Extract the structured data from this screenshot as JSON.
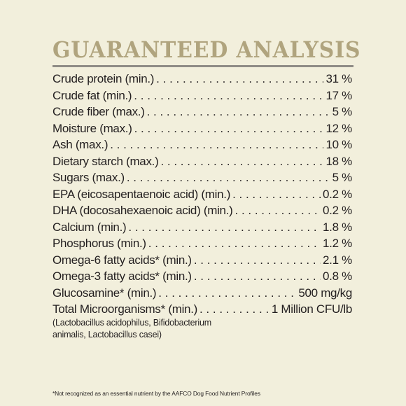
{
  "title": "GUARANTEED ANALYSIS",
  "rows": [
    {
      "label": "Crude protein (min.)",
      "value": "31 %"
    },
    {
      "label": "Crude fat (min.)",
      "value": "17 %"
    },
    {
      "label": "Crude fiber (max.)",
      "value": "5 %"
    },
    {
      "label": "Moisture (max.)",
      "value": "12 %"
    },
    {
      "label": "Ash (max.)",
      "value": "10 %"
    },
    {
      "label": "Dietary starch (max.)",
      "value": "18 %"
    },
    {
      "label": "Sugars (max.)",
      "value": "5 %"
    },
    {
      "label": "EPA (eicosapentaenoic acid) (min.)",
      "value": "0.2 %"
    },
    {
      "label": "DHA (docosahexaenoic acid) (min.)",
      "value": "0.2 %"
    },
    {
      "label": "Calcium (min.)",
      "value": "1.8 %"
    },
    {
      "label": "Phosphorus (min.)",
      "value": "1.2 %"
    },
    {
      "label": "Omega-6 fatty acids* (min.)",
      "value": "2.1 %"
    },
    {
      "label": "Omega-3 fatty acids* (min.)",
      "value": "0.8 %"
    },
    {
      "label": "Glucosamine* (min.)",
      "value": "500 mg/kg"
    },
    {
      "label": "Total Microorganisms* (min.)",
      "value": "1 Million CFU/lb"
    }
  ],
  "microorganisms_note": "(Lactobacillus acidophilus, Bifidobacterium animalis, Lactobacillus casei)",
  "footnote": "*Not recognized as an essential nutrient by the AAFCO Dog Food Nutrient Profiles"
}
